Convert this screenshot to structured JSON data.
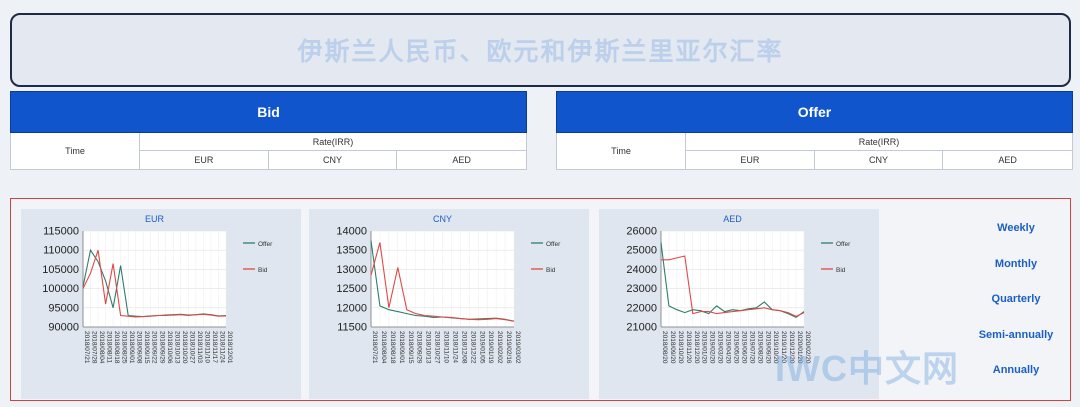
{
  "header": {
    "title": "伊斯兰人民币、欧元和伊斯兰里亚尔汇率"
  },
  "bid_panel": {
    "title": "Bid",
    "time_label": "Time",
    "rate_label": "Rate(IRR)",
    "currencies": [
      "EUR",
      "CNY",
      "AED"
    ]
  },
  "offer_panel": {
    "title": "Offer",
    "time_label": "Time",
    "rate_label": "Rate(IRR)",
    "currencies": [
      "EUR",
      "CNY",
      "AED"
    ]
  },
  "periods": [
    "Weekly",
    "Monthly",
    "Quarterly",
    "Semi-annually",
    "Annually"
  ],
  "watermark": "IWC中文网",
  "colors": {
    "offer": "#2e7d6a",
    "bid": "#e04848",
    "accent": "#1155cc"
  },
  "chart_data": [
    {
      "type": "line",
      "title": "EUR",
      "yticks": [
        90000,
        95000,
        100000,
        105000,
        110000,
        115000
      ],
      "ylim": [
        90000,
        115000
      ],
      "x": [
        "2018/07/21",
        "2018/07/28",
        "2018/08/04",
        "2018/08/11",
        "2018/08/18",
        "2018/08/25",
        "2018/09/01",
        "2018/09/08",
        "2018/09/15",
        "2018/09/22",
        "2018/09/29",
        "2018/10/06",
        "2018/10/13",
        "2018/10/20",
        "2018/10/27",
        "2018/11/03",
        "2018/11/10",
        "2018/11/17",
        "2018/11/24",
        "2018/12/01"
      ],
      "legend": [
        "Offer",
        "Bid"
      ],
      "series": [
        {
          "name": "Offer",
          "values": [
            100500,
            110000,
            107000,
            102000,
            95000,
            106000,
            93000,
            92800,
            92700,
            92900,
            93000,
            93100,
            93200,
            93300,
            93100,
            93200,
            93400,
            93200,
            92900,
            93000
          ]
        },
        {
          "name": "Bid",
          "values": [
            100000,
            104000,
            110000,
            96000,
            106500,
            93000,
            92800,
            92600,
            92700,
            92800,
            93000,
            93000,
            93100,
            93200,
            93000,
            93200,
            93300,
            93100,
            92800,
            92900
          ]
        }
      ]
    },
    {
      "type": "line",
      "title": "CNY",
      "yticks": [
        11500,
        12000,
        12500,
        13000,
        13500,
        14000
      ],
      "ylim": [
        11500,
        14000
      ],
      "x": [
        "2018/07/21",
        "2018/08/04",
        "2018/08/18",
        "2018/09/01",
        "2018/09/15",
        "2018/09/29",
        "2018/10/13",
        "2018/10/27",
        "2018/11/10",
        "2018/11/24",
        "2018/12/08",
        "2018/12/22",
        "2019/01/05",
        "2019/01/19",
        "2019/02/02",
        "2019/02/16",
        "2019/03/02"
      ],
      "legend": [
        "Offer",
        "Bid"
      ],
      "series": [
        {
          "name": "Offer",
          "values": [
            13750,
            12050,
            11950,
            11900,
            11850,
            11800,
            11780,
            11750,
            11760,
            11740,
            11720,
            11700,
            11710,
            11720,
            11730,
            11700,
            11650
          ]
        },
        {
          "name": "Bid",
          "values": [
            12850,
            13700,
            12000,
            13050,
            11950,
            11850,
            11800,
            11780,
            11760,
            11750,
            11720,
            11700,
            11690,
            11700,
            11720,
            11690,
            11650
          ]
        }
      ]
    },
    {
      "type": "line",
      "title": "AED",
      "yticks": [
        21000,
        22000,
        23000,
        24000,
        25000,
        26000
      ],
      "ylim": [
        21000,
        26000
      ],
      "x": [
        "2018/08/20",
        "2018/09/20",
        "2018/10/20",
        "2018/11/20",
        "2018/12/20",
        "2019/01/20",
        "2019/02/20",
        "2019/03/20",
        "2019/04/20",
        "2019/05/20",
        "2019/06/20",
        "2019/07/20",
        "2019/08/20",
        "2019/09/20",
        "2019/10/20",
        "2019/11/20",
        "2019/12/20",
        "2020/01/20",
        "2020/02/20"
      ],
      "legend": [
        "Offer",
        "Bid"
      ],
      "series": [
        {
          "name": "Offer",
          "values": [
            25400,
            22100,
            21900,
            21750,
            21900,
            21850,
            21700,
            22100,
            21800,
            21900,
            21850,
            21950,
            22000,
            22300,
            21900,
            21850,
            21700,
            21500,
            21800
          ]
        },
        {
          "name": "Bid",
          "values": [
            24500,
            24500,
            24600,
            24700,
            21700,
            21800,
            21800,
            21700,
            21750,
            21800,
            21850,
            21900,
            21950,
            22000,
            21900,
            21850,
            21750,
            21550,
            21750
          ]
        }
      ]
    }
  ]
}
